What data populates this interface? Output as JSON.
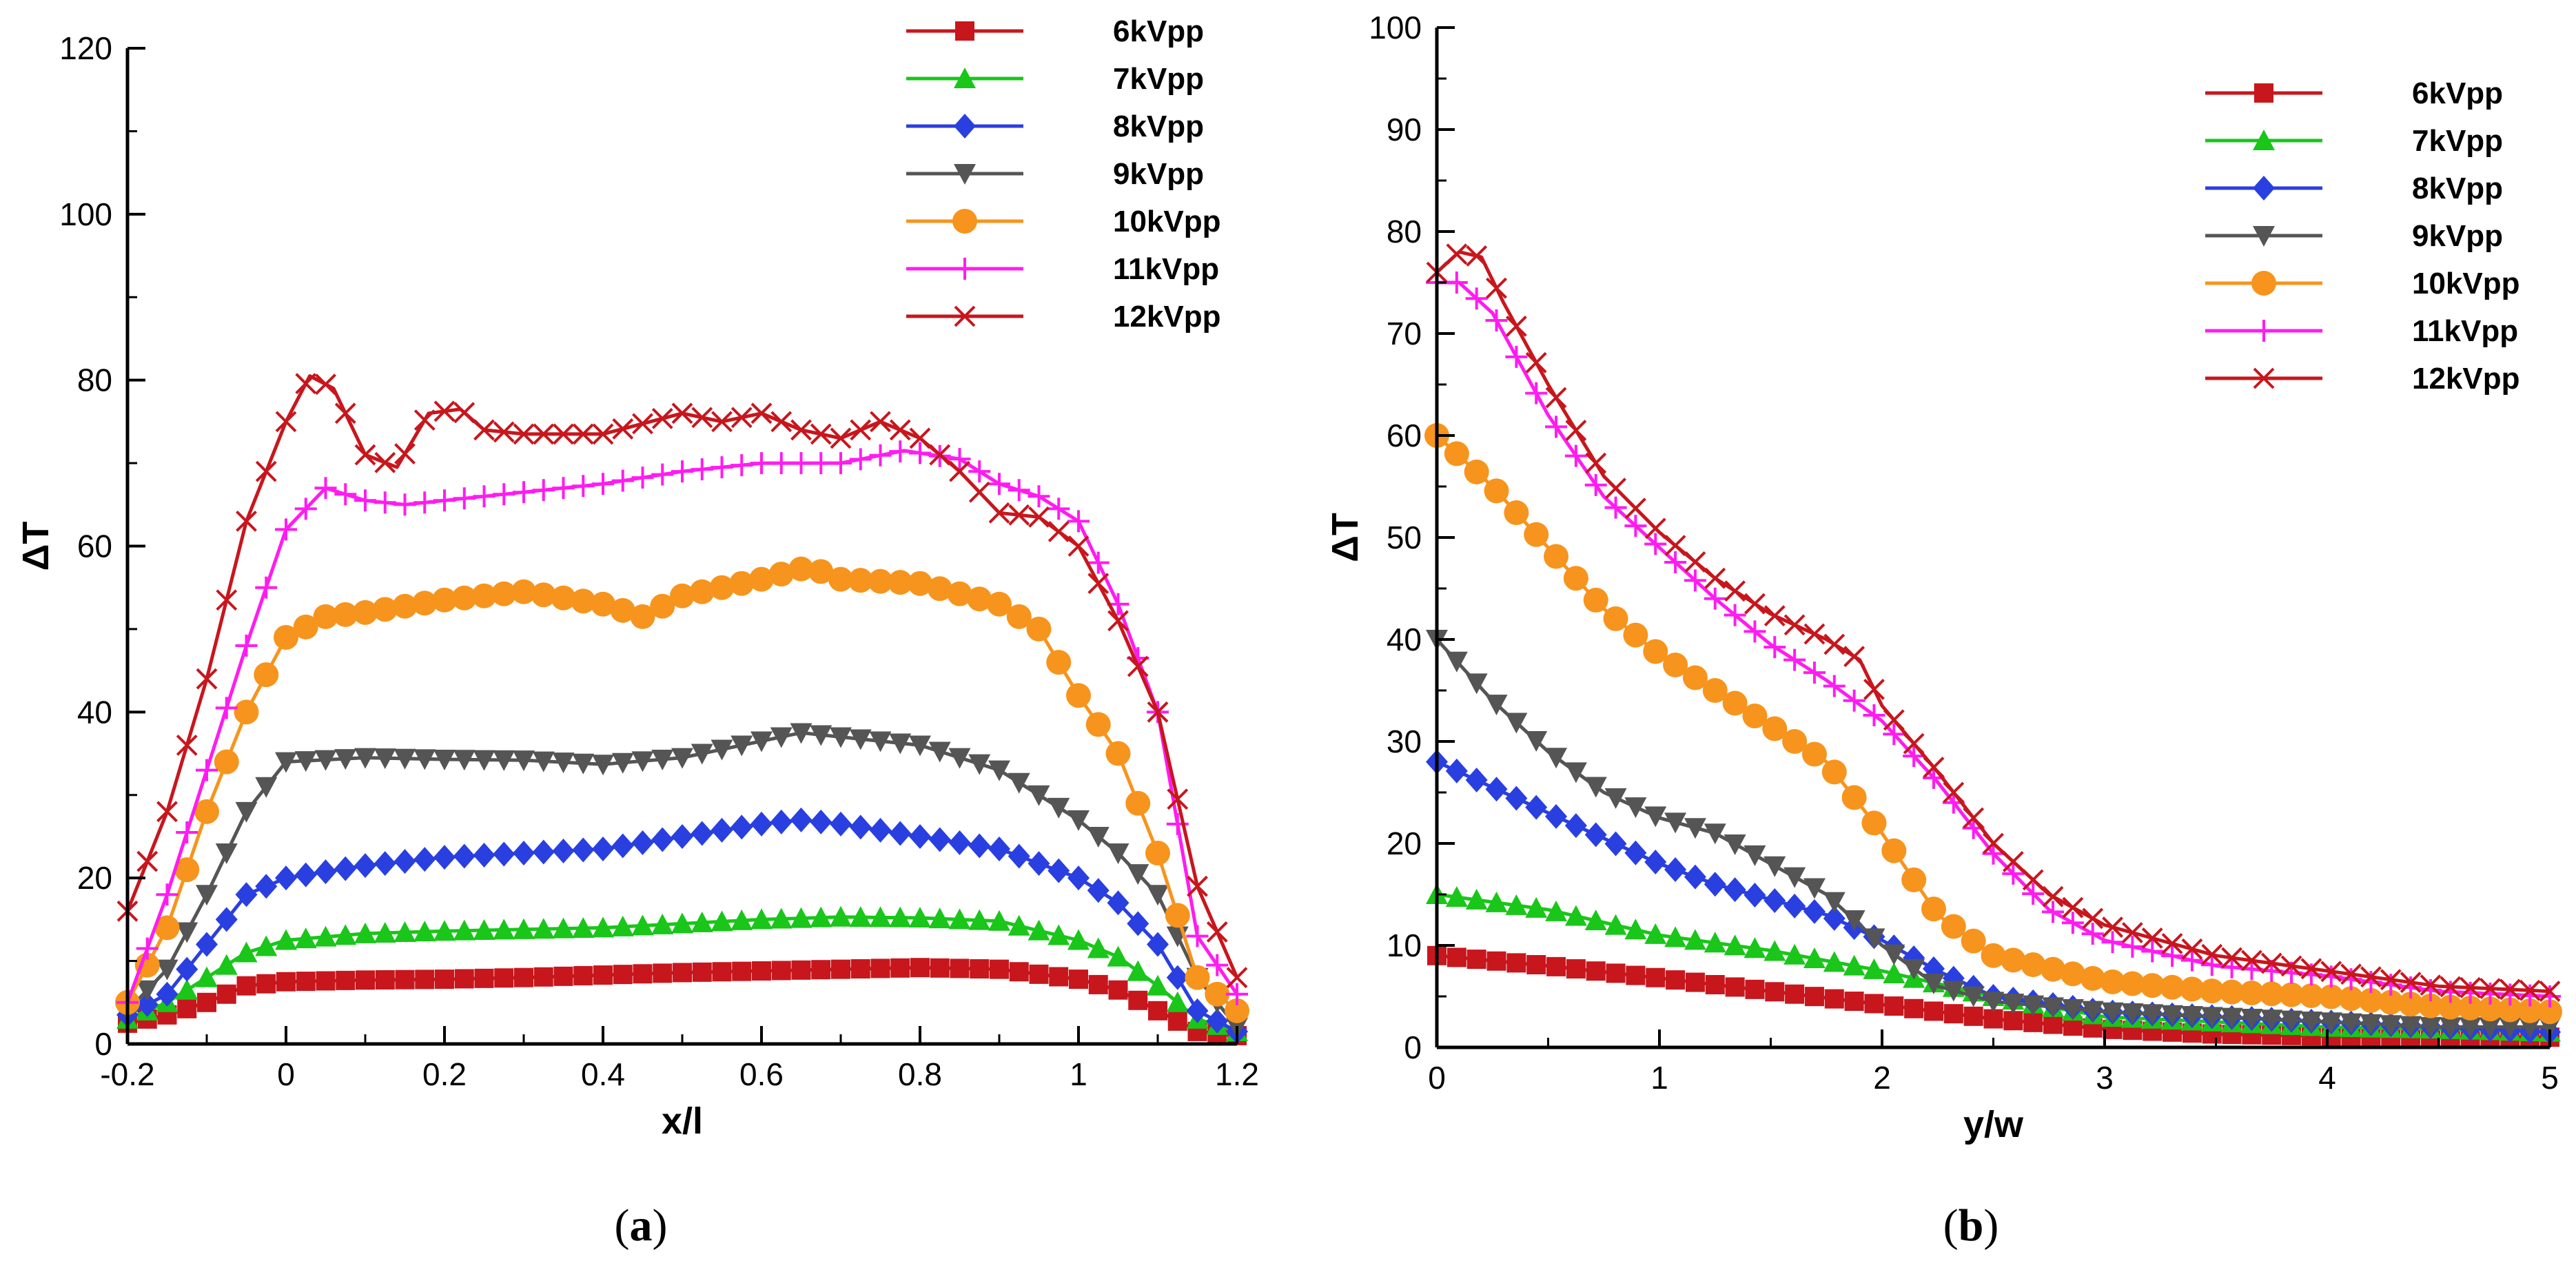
{
  "figure": {
    "panel_a_caption": {
      "open": "(",
      "letter": "a",
      "close": ")"
    },
    "panel_b_caption": {
      "open": "(",
      "letter": "b",
      "close": ")"
    }
  },
  "chart_data": [
    {
      "type": "line",
      "panel": "a",
      "title": "",
      "xlabel": "x/l",
      "ylabel": "ΔT",
      "xlim": [
        -0.2,
        1.2
      ],
      "ylim": [
        0,
        120
      ],
      "xticks": [
        -0.2,
        0,
        0.2,
        0.4,
        0.6,
        0.8,
        1,
        1.2
      ],
      "xtick_labels": [
        "-0.2",
        "0",
        "0.2",
        "0.4",
        "0.6",
        "0.8",
        "1",
        "1.2"
      ],
      "yticks": [
        0,
        20,
        40,
        60,
        80,
        100,
        120
      ],
      "ytick_labels": [
        "0",
        "20",
        "40",
        "60",
        "80",
        "100",
        "120"
      ],
      "grid": false,
      "legend_position": "top-right",
      "series": [
        {
          "name": "6kVpp",
          "color": "#c8161d",
          "marker": "square",
          "markevery": 1,
          "x": [
            -0.2,
            -0.15,
            -0.1,
            -0.05,
            0,
            0.1,
            0.2,
            0.3,
            0.4,
            0.5,
            0.6,
            0.7,
            0.8,
            0.9,
            1.0,
            1.05,
            1.1,
            1.15,
            1.2
          ],
          "y": [
            2.5,
            3.5,
            5,
            7,
            7.5,
            7.7,
            7.8,
            8,
            8.3,
            8.6,
            8.8,
            9,
            9.2,
            9,
            7.8,
            6.5,
            4,
            1.5,
            1
          ]
        },
        {
          "name": "7kVpp",
          "color": "#19c619",
          "marker": "triangle",
          "markevery": 1,
          "x": [
            -0.2,
            -0.15,
            -0.1,
            -0.05,
            0,
            0.1,
            0.2,
            0.3,
            0.4,
            0.5,
            0.6,
            0.7,
            0.8,
            0.9,
            1.0,
            1.05,
            1.1,
            1.15,
            1.2
          ],
          "y": [
            3,
            5,
            8,
            11,
            12.5,
            13.3,
            13.6,
            13.8,
            14,
            14.5,
            15,
            15.3,
            15.2,
            14.8,
            12.5,
            10.5,
            7,
            3,
            1.5
          ]
        },
        {
          "name": "8kVpp",
          "color": "#2a3fe0",
          "marker": "diamond",
          "markevery": 1,
          "x": [
            -0.2,
            -0.15,
            -0.1,
            -0.05,
            0,
            0.1,
            0.2,
            0.3,
            0.4,
            0.5,
            0.6,
            0.65,
            0.7,
            0.8,
            0.9,
            1.0,
            1.05,
            1.1,
            1.15,
            1.2
          ],
          "y": [
            3.5,
            6,
            12,
            18,
            20,
            21.5,
            22.5,
            23,
            23.5,
            25,
            26.5,
            27,
            26.5,
            25,
            23.5,
            20,
            17,
            12,
            4,
            1.5
          ]
        },
        {
          "name": "9kVpp",
          "color": "#555555",
          "marker": "triangle-down",
          "markevery": 1,
          "x": [
            -0.2,
            -0.15,
            -0.1,
            -0.05,
            0,
            0.1,
            0.2,
            0.3,
            0.4,
            0.5,
            0.6,
            0.65,
            0.7,
            0.8,
            0.9,
            1.0,
            1.05,
            1.1,
            1.15,
            1.2
          ],
          "y": [
            4,
            9,
            18,
            28,
            34,
            34.5,
            34.3,
            34.2,
            33.7,
            34.5,
            36.5,
            37.5,
            37,
            36,
            33,
            27,
            23,
            18,
            8,
            2
          ]
        },
        {
          "name": "10kVpp",
          "color": "#f7941d",
          "marker": "circle",
          "markevery": 2,
          "x": [
            -0.2,
            -0.15,
            -0.1,
            -0.05,
            0,
            0.05,
            0.1,
            0.2,
            0.3,
            0.4,
            0.45,
            0.5,
            0.6,
            0.66,
            0.7,
            0.8,
            0.9,
            0.95,
            1.0,
            1.05,
            1.1,
            1.15,
            1.2
          ],
          "y": [
            5,
            14,
            28,
            40,
            49,
            51.5,
            52,
            53.5,
            54.5,
            53,
            51.5,
            54,
            56,
            57.5,
            56,
            55.5,
            53,
            50,
            42,
            35,
            23,
            8,
            4
          ]
        },
        {
          "name": "11kVpp",
          "color": "#ff1cf0",
          "marker": "plus",
          "markevery": 2,
          "x": [
            -0.2,
            -0.15,
            -0.1,
            -0.05,
            0,
            0.05,
            0.1,
            0.15,
            0.2,
            0.3,
            0.4,
            0.5,
            0.6,
            0.7,
            0.78,
            0.85,
            0.9,
            0.95,
            1.0,
            1.05,
            1.1,
            1.15,
            1.2
          ],
          "y": [
            5,
            18,
            33,
            48,
            62,
            67,
            65.5,
            65,
            65.5,
            66.5,
            67.5,
            69,
            70,
            70,
            71.5,
            70.5,
            67.5,
            66,
            63,
            53,
            40,
            13,
            6
          ]
        },
        {
          "name": "12kVpp",
          "color": "#c8161d",
          "marker": "x",
          "markevery": 2,
          "x": [
            -0.2,
            -0.15,
            -0.1,
            -0.05,
            0,
            0.03,
            0.06,
            0.1,
            0.14,
            0.18,
            0.22,
            0.25,
            0.3,
            0.4,
            0.5,
            0.55,
            0.6,
            0.65,
            0.7,
            0.75,
            0.8,
            0.85,
            0.9,
            0.95,
            1.0,
            1.05,
            1.1,
            1.15,
            1.2
          ],
          "y": [
            16,
            28,
            44,
            63,
            75,
            80.5,
            79,
            71,
            69.5,
            76,
            76.5,
            74,
            73.5,
            73.5,
            76,
            75,
            76,
            74,
            73,
            75,
            73,
            69,
            64,
            63.5,
            60,
            51,
            40,
            19,
            8
          ]
        }
      ]
    },
    {
      "type": "line",
      "panel": "b",
      "title": "",
      "xlabel": "y/w",
      "ylabel": "ΔT",
      "xlim": [
        0,
        5
      ],
      "ylim": [
        0,
        100
      ],
      "xticks": [
        0,
        1,
        2,
        3,
        4,
        5
      ],
      "xtick_labels": [
        "0",
        "1",
        "2",
        "3",
        "4",
        "5"
      ],
      "yticks": [
        0,
        10,
        20,
        30,
        40,
        50,
        60,
        70,
        80,
        90,
        100
      ],
      "ytick_labels": [
        "0",
        "10",
        "20",
        "30",
        "40",
        "50",
        "60",
        "70",
        "80",
        "90",
        "100"
      ],
      "grid": false,
      "legend_position": "top-right",
      "series": [
        {
          "name": "6kVpp",
          "color": "#c8161d",
          "marker": "square",
          "markevery": 2,
          "x": [
            0,
            0.5,
            1,
            1.5,
            2,
            2.5,
            3,
            3.5,
            4,
            4.5,
            5
          ],
          "y": [
            9,
            8,
            6.8,
            5.5,
            4.2,
            2.8,
            1.8,
            1.3,
            1.1,
            1,
            1
          ]
        },
        {
          "name": "7kVpp",
          "color": "#19c619",
          "marker": "triangle",
          "markevery": 2,
          "x": [
            0,
            0.5,
            1,
            1.5,
            2,
            2.5,
            3,
            3.5,
            4,
            4.5,
            5
          ],
          "y": [
            15,
            13.5,
            11,
            9.5,
            7.5,
            5,
            3,
            2.5,
            2,
            1.8,
            1.5
          ]
        },
        {
          "name": "8kVpp",
          "color": "#2a3fe0",
          "marker": "diamond",
          "markevery": 2,
          "x": [
            0,
            0.25,
            0.5,
            0.75,
            1,
            1.25,
            1.5,
            1.75,
            2,
            2.25,
            2.5,
            3,
            3.5,
            4,
            4.5,
            5
          ],
          "y": [
            28,
            25.5,
            23,
            20.5,
            18,
            16,
            14.5,
            13,
            10.5,
            7.5,
            5,
            3.5,
            3,
            2.5,
            2,
            1.5
          ]
        },
        {
          "name": "9kVpp",
          "color": "#555555",
          "marker": "triangle-down",
          "markevery": 2,
          "x": [
            0,
            0.25,
            0.5,
            0.75,
            1,
            1.25,
            1.5,
            1.75,
            2,
            2.25,
            2.5,
            3,
            3.5,
            4,
            4.5,
            5
          ],
          "y": [
            40,
            34,
            29,
            25,
            22.5,
            21,
            18,
            15,
            10,
            6,
            4.5,
            3.5,
            3,
            2.5,
            2,
            2
          ]
        },
        {
          "name": "10kVpp",
          "color": "#f7941d",
          "marker": "circle",
          "markevery": 2,
          "x": [
            0,
            0.25,
            0.5,
            0.75,
            1,
            1.25,
            1.5,
            1.75,
            2,
            2.25,
            2.5,
            3,
            3.5,
            4,
            4.5,
            5
          ],
          "y": [
            60,
            55,
            49,
            43,
            38.5,
            35,
            31.5,
            28,
            21,
            13,
            9,
            6.5,
            5.5,
            5,
            4,
            3.5
          ]
        },
        {
          "name": "11kVpp",
          "color": "#ff1cf0",
          "marker": "plus",
          "markevery": 2,
          "x": [
            0,
            0.1,
            0.25,
            0.5,
            0.75,
            1,
            1.25,
            1.5,
            1.75,
            2,
            2.25,
            2.5,
            2.75,
            3,
            3.5,
            4,
            4.5,
            5
          ],
          "y": [
            75,
            75,
            72,
            62,
            54,
            49,
            44,
            39.5,
            36,
            32,
            26,
            19,
            13.5,
            10.5,
            8,
            7,
            5.5,
            5
          ]
        },
        {
          "name": "12kVpp",
          "color": "#c8161d",
          "marker": "x",
          "markevery": 2,
          "x": [
            0,
            0.1,
            0.2,
            0.3,
            0.5,
            0.75,
            1,
            1.25,
            1.5,
            1.75,
            1.9,
            2,
            2.25,
            2.5,
            2.75,
            3,
            3.5,
            4,
            4.5,
            5
          ],
          "y": [
            76,
            78,
            77.5,
            73,
            65,
            56,
            50.5,
            46,
            42.5,
            40,
            38,
            33.5,
            27,
            20,
            15,
            12,
            9,
            7.5,
            6,
            5.5
          ]
        }
      ]
    }
  ]
}
